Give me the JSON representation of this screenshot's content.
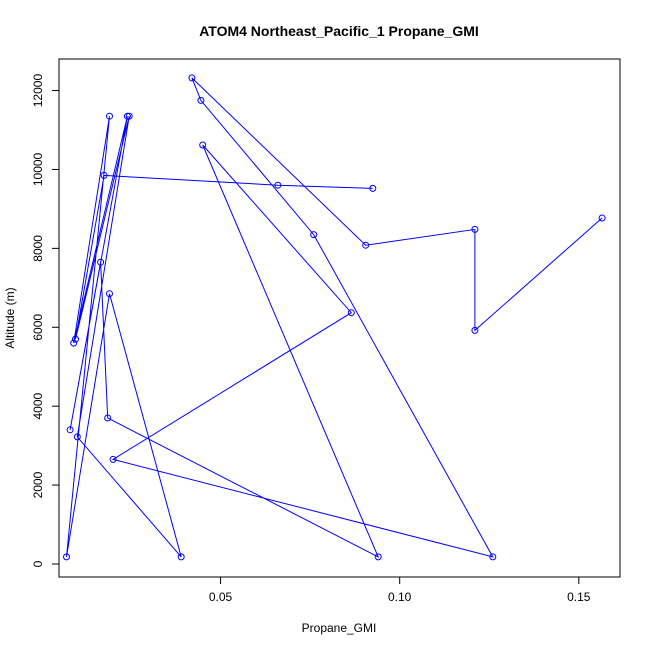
{
  "chart_data": {
    "type": "line",
    "title": "ATOM4 Northeast_Pacific_1 Propane_GMI",
    "xlabel": "Propane_GMI",
    "ylabel": "Altitude (m)",
    "xlim": [
      0.0049,
      0.1615
    ],
    "ylim": [
      -330,
      12800
    ],
    "x_ticks": [
      0.05,
      0.1,
      0.15
    ],
    "x_tick_labels": [
      "0.05",
      "0.10",
      "0.15"
    ],
    "y_ticks": [
      0,
      2000,
      4000,
      6000,
      8000,
      10000,
      12000
    ],
    "y_tick_labels": [
      "0",
      "2000",
      "4000",
      "6000",
      "8000",
      "10000",
      "12000"
    ],
    "grid": false,
    "series": [
      {
        "color": "#0000ff",
        "points": [
          {
            "x": 0.0925,
            "y": 9520
          },
          {
            "x": 0.066,
            "y": 9600
          },
          {
            "x": 0.0175,
            "y": 9850
          },
          {
            "x": 0.0095,
            "y": 5700
          },
          {
            "x": 0.0245,
            "y": 11350
          },
          {
            "x": 0.01,
            "y": 3220
          },
          {
            "x": 0.039,
            "y": 180
          },
          {
            "x": 0.019,
            "y": 6850
          },
          {
            "x": 0.007,
            "y": 180
          },
          {
            "x": 0.019,
            "y": 11350
          },
          {
            "x": 0.009,
            "y": 5600
          },
          {
            "x": 0.024,
            "y": 11350
          },
          {
            "x": 0.008,
            "y": 3400
          },
          {
            "x": 0.0165,
            "y": 7650
          },
          {
            "x": 0.0185,
            "y": 3700
          },
          {
            "x": 0.094,
            "y": 180
          },
          {
            "x": 0.045,
            "y": 10620
          },
          {
            "x": 0.0865,
            "y": 6370
          },
          {
            "x": 0.02,
            "y": 2650
          },
          {
            "x": 0.126,
            "y": 180
          },
          {
            "x": 0.076,
            "y": 8350
          },
          {
            "x": 0.0445,
            "y": 11750
          },
          {
            "x": 0.042,
            "y": 12320
          },
          {
            "x": 0.0905,
            "y": 8080
          },
          {
            "x": 0.121,
            "y": 8480
          },
          {
            "x": 0.121,
            "y": 5920
          },
          {
            "x": 0.1565,
            "y": 8770
          }
        ]
      }
    ]
  }
}
